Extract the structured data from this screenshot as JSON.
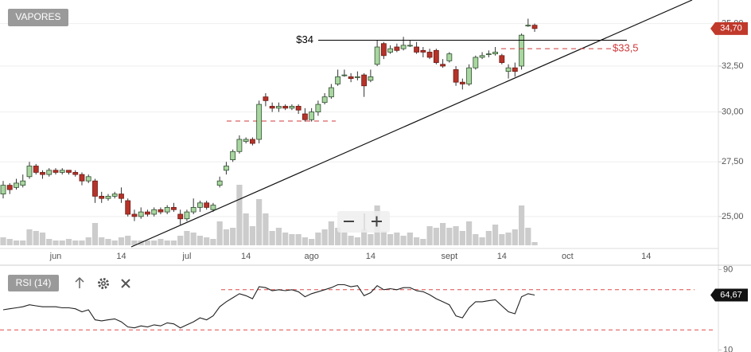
{
  "chart_data": [
    {
      "type": "candlestick",
      "title": "VAPORES",
      "categories": [
        null,
        null,
        null,
        null,
        null,
        null,
        null,
        null,
        "jun",
        null,
        null,
        null,
        null,
        null,
        null,
        null,
        null,
        null,
        "14",
        null,
        null,
        null,
        null,
        null,
        null,
        null,
        null,
        null,
        "jul",
        null,
        null,
        null,
        null,
        null,
        null,
        null,
        null,
        "14",
        null,
        null,
        null,
        null,
        null,
        null,
        null,
        null,
        null,
        "ago",
        null,
        null,
        null,
        null,
        null,
        null,
        null,
        null,
        "14",
        null,
        null,
        null,
        null,
        null,
        null,
        null,
        null,
        null,
        null,
        null,
        "sept",
        null,
        null,
        null,
        null,
        null,
        null,
        null,
        "14",
        null,
        null,
        null,
        null,
        null,
        null,
        null,
        null,
        null,
        "oct",
        null,
        null,
        null,
        null,
        null,
        null,
        null,
        null,
        null,
        null,
        null,
        "14",
        null,
        null,
        null,
        null,
        null,
        null,
        null,
        null,
        null,
        null
      ],
      "open": [
        26.0,
        26.4,
        26.3,
        26.4,
        26.8,
        27.3,
        27.0,
        26.9,
        27.1,
        27.0,
        27.1,
        27.0,
        26.9,
        26.6,
        26.6,
        25.9,
        25.8,
        25.9,
        26.0,
        25.7,
        25.1,
        25.0,
        25.2,
        25.1,
        25.3,
        25.2,
        25.4,
        25.1,
        24.9,
        25.2,
        25.4,
        25.6,
        25.3,
        26.4,
        27.1,
        27.6,
        28.0,
        28.5,
        28.6,
        28.6,
        30.8,
        30.3,
        30.2,
        30.3,
        30.2,
        30.3,
        29.9,
        29.6,
        30.0,
        30.5,
        30.8,
        31.5,
        32.0,
        31.9,
        31.9,
        32.0,
        31.7,
        32.6,
        33.8,
        33.3,
        33.6,
        33.5,
        33.7,
        33.6,
        33.4,
        33.3,
        33.4,
        32.6,
        32.8,
        32.3,
        31.6,
        31.5,
        32.4,
        33.0,
        33.2,
        33.2,
        33.1,
        32.2,
        32.4,
        32.5,
        34.9,
        34.9,
        null,
        null,
        null,
        null,
        null,
        null,
        null,
        null,
        null,
        null,
        null,
        null,
        null,
        null,
        null,
        null,
        null,
        null,
        null,
        null,
        null,
        null,
        null,
        null,
        null,
        null,
        null
      ],
      "high": [
        26.6,
        26.5,
        26.7,
        26.9,
        27.5,
        27.4,
        27.1,
        27.2,
        27.2,
        27.2,
        27.1,
        27.1,
        27.0,
        26.9,
        26.7,
        26.1,
        26.0,
        26.1,
        26.3,
        25.8,
        25.3,
        25.4,
        25.3,
        25.4,
        25.4,
        25.5,
        25.6,
        25.3,
        25.3,
        25.8,
        25.7,
        25.7,
        25.6,
        26.8,
        27.5,
        28.1,
        28.8,
        28.7,
        28.7,
        30.6,
        31.0,
        30.5,
        30.5,
        30.4,
        30.4,
        30.4,
        30.2,
        30.2,
        30.6,
        31.0,
        31.5,
        32.3,
        32.3,
        32.1,
        32.2,
        32.1,
        32.3,
        34.0,
        33.9,
        33.7,
        33.8,
        34.2,
        34.0,
        33.9,
        33.6,
        33.5,
        33.5,
        32.9,
        33.3,
        32.5,
        31.8,
        32.6,
        33.1,
        33.3,
        33.4,
        33.6,
        33.2,
        32.6,
        32.7,
        34.4,
        35.3,
        35.0,
        null,
        null,
        null,
        null,
        null,
        null,
        null,
        null,
        null,
        null,
        null,
        null,
        null,
        null,
        null,
        null,
        null,
        null,
        null,
        null,
        null,
        null,
        null,
        null,
        null,
        null,
        null
      ],
      "low": [
        25.8,
        26.0,
        26.2,
        26.3,
        26.7,
        26.9,
        26.7,
        26.8,
        26.9,
        26.9,
        26.9,
        26.8,
        26.4,
        26.5,
        25.6,
        25.6,
        25.7,
        25.8,
        25.6,
        25.0,
        24.8,
        24.9,
        25.0,
        25.0,
        25.1,
        25.1,
        25.2,
        24.6,
        24.8,
        25.1,
        25.2,
        25.3,
        25.2,
        26.3,
        26.9,
        27.5,
        27.9,
        28.4,
        28.3,
        28.4,
        30.3,
        30.0,
        30.0,
        30.1,
        30.1,
        29.9,
        29.5,
        29.5,
        29.8,
        30.4,
        30.7,
        31.4,
        31.9,
        31.6,
        31.7,
        30.8,
        31.6,
        32.5,
        32.9,
        33.2,
        33.3,
        33.4,
        33.6,
        33.2,
        33.0,
        32.9,
        32.6,
        32.4,
        32.7,
        31.4,
        31.2,
        31.4,
        32.3,
        32.9,
        33.0,
        33.1,
        32.6,
        31.8,
        31.9,
        32.3,
        34.8,
        34.5,
        null,
        null,
        null,
        null,
        null,
        null,
        null,
        null,
        null,
        null,
        null,
        null,
        null,
        null,
        null,
        null,
        null,
        null,
        null,
        null,
        null,
        null,
        null,
        null,
        null,
        null,
        null
      ],
      "close": [
        26.4,
        26.2,
        26.5,
        26.6,
        27.3,
        27.0,
        26.9,
        27.1,
        27.0,
        27.1,
        27.0,
        26.9,
        26.6,
        26.8,
        25.9,
        25.8,
        25.9,
        26.0,
        25.8,
        25.1,
        25.0,
        25.2,
        25.1,
        25.3,
        25.2,
        25.4,
        25.3,
        24.9,
        25.2,
        25.4,
        25.6,
        25.4,
        25.5,
        26.6,
        27.3,
        28.0,
        28.6,
        28.6,
        28.4,
        30.4,
        30.6,
        30.2,
        30.3,
        30.2,
        30.3,
        30.1,
        29.6,
        30.0,
        30.4,
        30.8,
        31.3,
        31.9,
        32.0,
        31.8,
        31.9,
        31.4,
        31.9,
        33.6,
        33.1,
        33.5,
        33.4,
        33.7,
        33.7,
        33.3,
        33.3,
        33.0,
        32.7,
        32.5,
        33.2,
        31.6,
        31.5,
        32.4,
        33.0,
        33.1,
        33.2,
        33.3,
        32.7,
        32.4,
        32.2,
        34.3,
        34.9,
        34.7,
        null,
        null,
        null,
        null,
        null,
        null,
        null,
        null,
        null,
        null,
        null,
        null,
        null,
        null,
        null,
        null,
        null,
        null,
        null,
        null,
        null,
        null,
        null,
        null,
        null,
        null,
        null
      ],
      "up_color": "#a9d6a0",
      "down_color": "#b5332a",
      "volume": {
        "color": "#cccccc",
        "vlim": [
          0,
          100
        ],
        "values": [
          10,
          8,
          6,
          6,
          20,
          18,
          16,
          8,
          6,
          6,
          8,
          6,
          6,
          10,
          28,
          10,
          8,
          6,
          10,
          12,
          6,
          6,
          6,
          6,
          8,
          6,
          6,
          12,
          18,
          16,
          12,
          10,
          8,
          30,
          20,
          22,
          76,
          40,
          24,
          58,
          40,
          18,
          22,
          16,
          14,
          14,
          10,
          8,
          16,
          20,
          30,
          22,
          16,
          12,
          10,
          20,
          14,
          50,
          18,
          14,
          16,
          12,
          16,
          10,
          8,
          24,
          22,
          28,
          22,
          24,
          18,
          30,
          14,
          10,
          18,
          26,
          14,
          16,
          20,
          50,
          22,
          4,
          null,
          null,
          null,
          null,
          null,
          null,
          null,
          null,
          null,
          null,
          null,
          null,
          null,
          null,
          null,
          null,
          null,
          null,
          null,
          null,
          null,
          null,
          null,
          null,
          null,
          null,
          null
        ]
      },
      "ylim": [
        23.71,
        36.47
      ],
      "log_scale": true,
      "grid": true,
      "yticks": [
        {
          "value": 25,
          "label": "25,00"
        },
        {
          "value": 27.5,
          "label": "27,50"
        },
        {
          "value": 30,
          "label": "30,00"
        },
        {
          "value": 32.5,
          "label": "32,50"
        },
        {
          "value": 35,
          "label": "35,00"
        }
      ],
      "levels": [
        {
          "label": "$34",
          "value": 34,
          "color": "#000000",
          "dashed": false
        },
        {
          "label": "$33,5",
          "value": 33.5,
          "color": "#d0393b",
          "dashed": true
        }
      ],
      "last_price": {
        "value": 34.7,
        "label": "34,70",
        "color": "#c0392b"
      }
    },
    {
      "type": "line",
      "title": "RSI (14)",
      "color": "#222222",
      "values": [
        50,
        51,
        52,
        53,
        55,
        54,
        53,
        53,
        53,
        52,
        52,
        51,
        48,
        50,
        40,
        39,
        40,
        41,
        38,
        33,
        32,
        34,
        33,
        35,
        34,
        37,
        36,
        32,
        35,
        38,
        42,
        40,
        44,
        53,
        58,
        62,
        66,
        64,
        61,
        73,
        72,
        69,
        70,
        69,
        70,
        68,
        63,
        66,
        68,
        70,
        72,
        75,
        75,
        73,
        74,
        64,
        67,
        74,
        70,
        71,
        70,
        72,
        72,
        69,
        68,
        65,
        61,
        58,
        55,
        44,
        42,
        52,
        58,
        58,
        59,
        60,
        54,
        48,
        46,
        63,
        66,
        64.67,
        null,
        null,
        null,
        null,
        null,
        null,
        null,
        null,
        null,
        null,
        null,
        null,
        null,
        null,
        null,
        null,
        null,
        null,
        null,
        null,
        null,
        null,
        null,
        null,
        null,
        null,
        null
      ],
      "ylim": [
        8,
        92
      ],
      "yticks": [
        90,
        10
      ],
      "levels": [
        70,
        30
      ],
      "level_color": "#e04a4a",
      "last_value": {
        "value": 64.67,
        "label": "64,67",
        "color": "#111111"
      }
    }
  ]
}
